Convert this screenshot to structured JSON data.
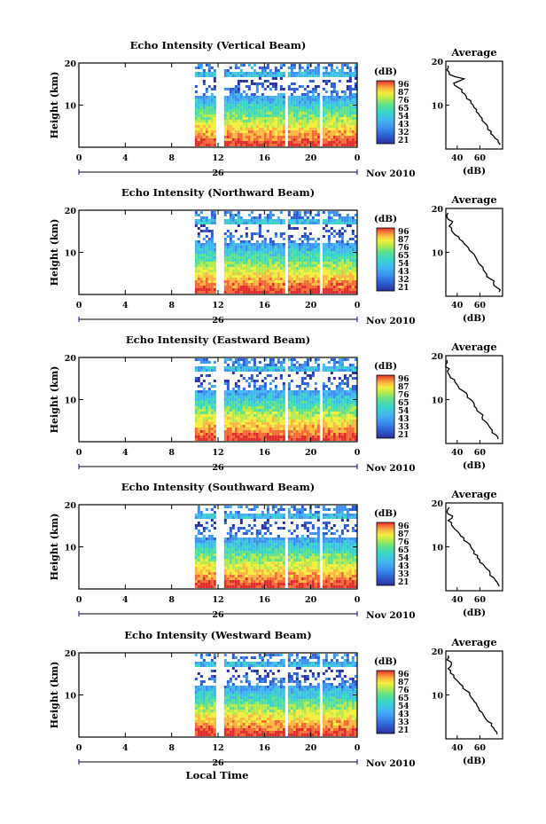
{
  "chart_data": [
    {
      "type": "heatmap",
      "title": "Echo Intensity (Vertical Beam)",
      "ylabel": "Height (km)",
      "xticks": [
        "0",
        "4",
        "8",
        "12",
        "16",
        "20",
        "0"
      ],
      "ylim": [
        0,
        20
      ],
      "yticks": [
        "20",
        "10"
      ],
      "xlim": [
        0,
        24
      ],
      "date_label": "26",
      "month_year": "Nov 2010",
      "data_start_hour": 10,
      "data_gaps_hours": [
        [
          11.8,
          12.3
        ],
        [
          17.6,
          17.9
        ],
        [
          20.6,
          21.0
        ]
      ],
      "colorbar": {
        "label": "(dB)",
        "ticks": [
          "96",
          "87",
          "76",
          "65",
          "54",
          "43",
          "32",
          "21"
        ],
        "range": [
          21,
          96
        ]
      },
      "average_profile": {
        "title": "Average",
        "xlabel": "(dB)",
        "xticks": [
          "40",
          "60"
        ],
        "xlim": [
          30,
          80
        ],
        "ylim": [
          0,
          20
        ],
        "yticks": [
          "20",
          "10"
        ],
        "height_km": [
          1,
          2,
          3,
          4,
          5,
          6,
          7,
          8,
          9,
          10,
          11,
          12,
          13,
          14,
          15,
          16,
          17,
          18,
          19
        ],
        "db": [
          78,
          76,
          72,
          70,
          67,
          64,
          62,
          59,
          57,
          54,
          52,
          48,
          44,
          41,
          37,
          46,
          33,
          31,
          32
        ]
      }
    },
    {
      "type": "heatmap",
      "title": "Echo Intensity (Northward Beam)",
      "ylabel": "Height (km)",
      "xticks": [
        "0",
        "4",
        "8",
        "12",
        "16",
        "20",
        "0"
      ],
      "ylim": [
        0,
        20
      ],
      "yticks": [
        "20",
        "10"
      ],
      "xlim": [
        0,
        24
      ],
      "date_label": "26",
      "month_year": "Nov 2010",
      "data_start_hour": 10,
      "data_gaps_hours": [
        [
          11.8,
          12.3
        ],
        [
          17.6,
          17.9
        ],
        [
          20.6,
          21.0
        ]
      ],
      "colorbar": {
        "label": "(dB)",
        "ticks": [
          "96",
          "87",
          "76",
          "65",
          "54",
          "43",
          "32",
          "21"
        ],
        "range": [
          21,
          96
        ]
      },
      "average_profile": {
        "title": "Average",
        "xlabel": "(dB)",
        "xticks": [
          "40",
          "60"
        ],
        "xlim": [
          30,
          80
        ],
        "ylim": [
          0,
          20
        ],
        "yticks": [
          "20",
          "10"
        ],
        "height_km": [
          1,
          2,
          3,
          4,
          5,
          6,
          7,
          8,
          9,
          10,
          11,
          12,
          13,
          14,
          15,
          16,
          17,
          18,
          19
        ],
        "db": [
          77,
          75,
          72,
          69,
          66,
          63,
          61,
          58,
          56,
          53,
          50,
          46,
          42,
          38,
          35,
          33,
          36,
          31,
          32
        ]
      }
    },
    {
      "type": "heatmap",
      "title": "Echo Intensity (Eastward Beam)",
      "ylabel": "Height (km)",
      "xticks": [
        "0",
        "4",
        "8",
        "12",
        "16",
        "20",
        "0"
      ],
      "ylim": [
        0,
        20
      ],
      "yticks": [
        "20",
        "10"
      ],
      "xlim": [
        0,
        24
      ],
      "date_label": "26",
      "month_year": "Nov 2010",
      "data_start_hour": 10,
      "data_gaps_hours": [
        [
          11.8,
          12.3
        ],
        [
          17.6,
          17.9
        ],
        [
          20.6,
          21.0
        ]
      ],
      "colorbar": {
        "label": "(dB)",
        "ticks": [
          "96",
          "87",
          "76",
          "65",
          "54",
          "43",
          "33",
          "21"
        ],
        "range": [
          21,
          96
        ]
      },
      "average_profile": {
        "title": "Average",
        "xlabel": "(dB)",
        "xticks": [
          "40",
          "60"
        ],
        "xlim": [
          30,
          80
        ],
        "ylim": [
          0,
          20
        ],
        "yticks": [
          "20",
          "10"
        ],
        "height_km": [
          1,
          2,
          3,
          4,
          5,
          6,
          7,
          8,
          9,
          10,
          11,
          12,
          13,
          14,
          15,
          16,
          17,
          18,
          19
        ],
        "db": [
          76,
          74,
          71,
          68,
          65,
          62,
          60,
          57,
          55,
          52,
          49,
          45,
          41,
          38,
          34,
          32,
          33,
          30,
          31
        ]
      }
    },
    {
      "type": "heatmap",
      "title": "Echo Intensity (Southward Beam)",
      "ylabel": "Height (km)",
      "xticks": [
        "0",
        "4",
        "8",
        "12",
        "16",
        "20",
        "0"
      ],
      "ylim": [
        0,
        20
      ],
      "yticks": [
        "20",
        "10"
      ],
      "xlim": [
        0,
        24
      ],
      "date_label": "26",
      "month_year": "Nov 2010",
      "data_start_hour": 10,
      "data_gaps_hours": [
        [
          11.8,
          12.3
        ],
        [
          17.6,
          17.9
        ],
        [
          20.6,
          21.0
        ]
      ],
      "colorbar": {
        "label": "(dB)",
        "ticks": [
          "96",
          "87",
          "76",
          "65",
          "54",
          "43",
          "33",
          "21"
        ],
        "range": [
          21,
          96
        ]
      },
      "average_profile": {
        "title": "Average",
        "xlabel": "(dB)",
        "xticks": [
          "40",
          "60"
        ],
        "xlim": [
          30,
          80
        ],
        "ylim": [
          0,
          20
        ],
        "yticks": [
          "20",
          "10"
        ],
        "height_km": [
          1,
          2,
          3,
          4,
          5,
          6,
          7,
          8,
          9,
          10,
          11,
          12,
          13,
          14,
          15,
          16,
          17,
          18,
          19
        ],
        "db": [
          77,
          75,
          72,
          69,
          66,
          63,
          60,
          58,
          55,
          52,
          49,
          46,
          42,
          38,
          35,
          32,
          36,
          31,
          33
        ]
      }
    },
    {
      "type": "heatmap",
      "title": "Echo Intensity (Westward Beam)",
      "ylabel": "Height (km)",
      "xticks": [
        "0",
        "4",
        "8",
        "12",
        "16",
        "20",
        "0"
      ],
      "ylim": [
        0,
        20
      ],
      "yticks": [
        "20",
        "10"
      ],
      "xlim": [
        0,
        24
      ],
      "date_label": "26",
      "month_year": "Nov 2010",
      "xlabel": "Local Time",
      "data_start_hour": 10,
      "data_gaps_hours": [
        [
          11.8,
          12.3
        ],
        [
          17.6,
          17.9
        ],
        [
          20.6,
          21.0
        ]
      ],
      "colorbar": {
        "label": "(dB)",
        "ticks": [
          "96",
          "87",
          "76",
          "65",
          "54",
          "43",
          "33",
          "21"
        ],
        "range": [
          21,
          96
        ]
      },
      "average_profile": {
        "title": "Average",
        "xlabel": "(dB)",
        "xticks": [
          "40",
          "60"
        ],
        "xlim": [
          30,
          80
        ],
        "ylim": [
          0,
          20
        ],
        "yticks": [
          "20",
          "10"
        ],
        "height_km": [
          1,
          2,
          3,
          4,
          5,
          6,
          7,
          8,
          9,
          10,
          11,
          12,
          13,
          14,
          15,
          16,
          17,
          18,
          19
        ],
        "db": [
          75,
          73,
          70,
          67,
          64,
          62,
          59,
          57,
          54,
          51,
          48,
          45,
          41,
          37,
          34,
          32,
          35,
          31,
          32
        ]
      }
    }
  ],
  "colors": {
    "colormap": [
      "#2b2f9e",
      "#2c5cd0",
      "#3d8ff0",
      "#41b7f0",
      "#37d6c7",
      "#5fe08a",
      "#b6ea4b",
      "#f3ee3e",
      "#f9b640",
      "#f26a35",
      "#e02b2b"
    ]
  }
}
